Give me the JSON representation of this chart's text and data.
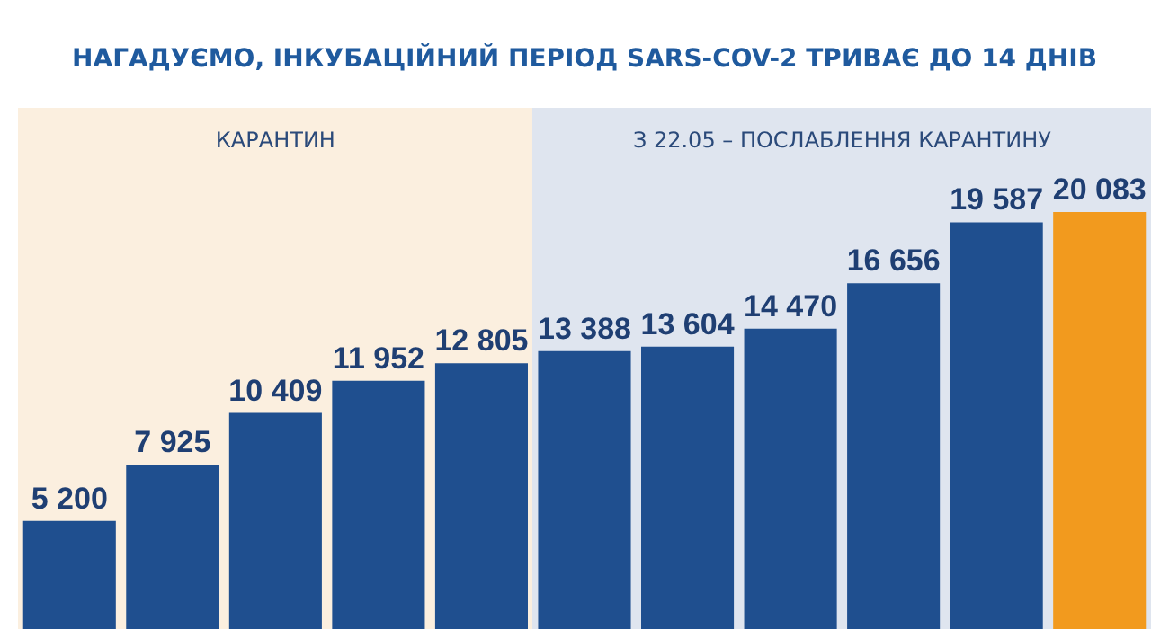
{
  "chart_data": {
    "type": "bar",
    "title": "НАГАДУЄМО, ІНКУБАЦІЙНИЙ ПЕРІОД SARS-COV-2 ТРИВАЄ ДО 14 ДНІВ",
    "categories": [
      null,
      null,
      null,
      null,
      null,
      null,
      null,
      null,
      null,
      null,
      null
    ],
    "values": [
      5200,
      7925,
      10409,
      11952,
      12805,
      13388,
      13604,
      14470,
      16656,
      19587,
      20083
    ],
    "colors": [
      "#1f4f8f",
      "#1f4f8f",
      "#1f4f8f",
      "#1f4f8f",
      "#1f4f8f",
      "#1f4f8f",
      "#1f4f8f",
      "#1f4f8f",
      "#1f4f8f",
      "#1f4f8f",
      "#f29a1e"
    ],
    "value_labels": [
      "5 200",
      "7 925",
      "10 409",
      "11 952",
      "12 805",
      "13 388",
      "13 604",
      "14 470",
      "16 656",
      "19 587",
      "20 083"
    ],
    "annotations": [
      "КАРАНТИН",
      "З 22.05 – ПОСЛАБЛЕННЯ КАРАНТИНУ"
    ]
  }
}
